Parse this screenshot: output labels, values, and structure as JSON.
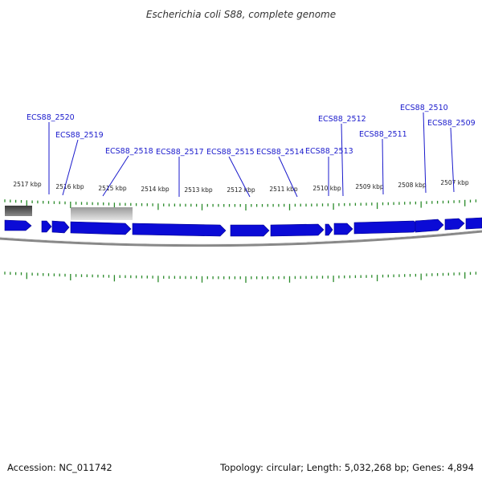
{
  "title": "Escherichia coli S88, complete genome",
  "footer": {
    "accession": "Accession: NC_011742",
    "summary": "Topology: circular; Length: 5,032,268 bp; Genes: 4,894"
  },
  "kbp_labels": [
    "2517 kbp",
    "2516 kbp",
    "2515 kbp",
    "2514 kbp",
    "2513 kbp",
    "2512 kbp",
    "2511 kbp",
    "2510 kbp",
    "2509 kbp",
    "2508 kbp",
    "2507 kbp"
  ],
  "gene_labels": [
    "ECS88_2520",
    "ECS88_2519",
    "ECS88_2518",
    "ECS88_2517",
    "ECS88_2515",
    "ECS88_2514",
    "ECS88_2513",
    "ECS88_2512",
    "ECS88_2511",
    "ECS88_2510",
    "ECS88_2509"
  ],
  "colors": {
    "gene_fill": "#0b0bd6",
    "gene_label": "#1a1acc",
    "tick": "#2a8a2a",
    "backbone": "#888888",
    "feature_dark": "#555555",
    "feature_light": "#bdbdbd"
  }
}
